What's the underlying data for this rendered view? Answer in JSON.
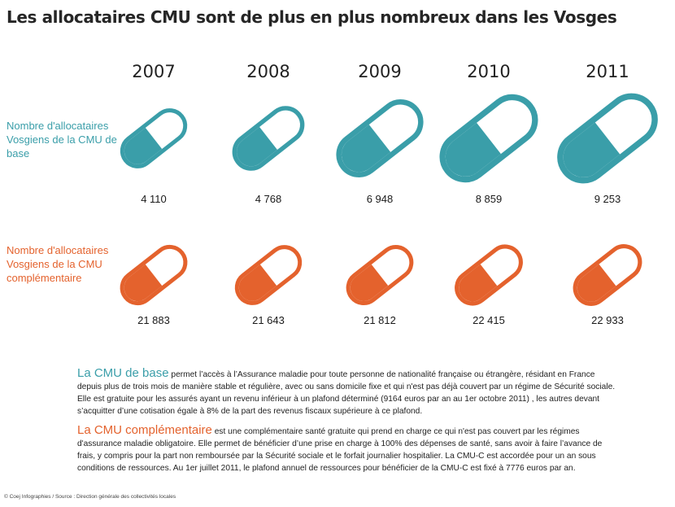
{
  "title": "Les allocataires CMU sont de plus en plus nombreux dans les Vosges",
  "colors": {
    "base": "#3a9ea9",
    "complementaire": "#e4622d"
  },
  "chart_data": {
    "type": "table",
    "categories": [
      "2007",
      "2008",
      "2009",
      "2010",
      "2011"
    ],
    "series": [
      {
        "name": "Nombre d'allocataires Vosgiens de la CMU de base",
        "values": [
          4110,
          4768,
          6948,
          8859,
          9253
        ],
        "labels": [
          "4 110",
          "4 768",
          "6 948",
          "8 859",
          "9 253"
        ]
      },
      {
        "name": "Nombre d'allocataires Vosgiens de la CMU complémentaire",
        "values": [
          21883,
          21643,
          21812,
          22415,
          22933
        ],
        "labels": [
          "21 883",
          "21 643",
          "21 812",
          "22 415",
          "22 933"
        ]
      }
    ]
  },
  "info": {
    "base": {
      "head": "La CMU de base",
      "text": "permet l’accès à l’Assurance maladie pour toute personne de nationalité française ou étrangère, résidant en France depuis plus de trois mois de manière stable et régulière, avec ou sans domicile fixe et qui n'est pas déjà couvert par un régime de Sécurité sociale. Elle est gratuite pour les assurés ayant un revenu inférieur à un plafond déterminé (9164 euros par an au 1er octobre 2011) , les autres devant s’acquitter d’une cotisation égale à 8% de la part des revenus fiscaux supérieure à ce plafond."
    },
    "comp": {
      "head": "La CMU complémentaire",
      "text": "est une complémentaire santé gratuite qui prend en charge ce qui n'est pas couvert par les régimes d'assurance maladie obligatoire. Elle permet de bénéficier d’une prise en charge à 100% des dépenses de santé, sans avoir à faire l’avance de frais, y compris pour la part non remboursée par la Sécurité sociale et le forfait journalier hospitalier. La CMU-C est accordée pour un an sous conditions de ressources. Au 1er juillet 2011, le plafond annuel de ressources pour bénéficier de la CMU-C est fixé à 7776 euros par an."
    }
  },
  "credit": "© Coej Infographies / Source : Direction générale des collectivités locales"
}
